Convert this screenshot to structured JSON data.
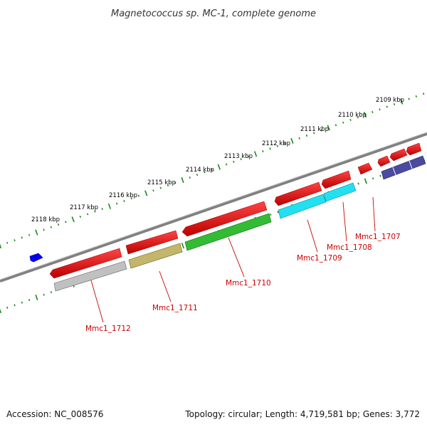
{
  "title": "Magnetococcus sp. MC-1, complete genome",
  "footer": {
    "accession": "Accession: NC_008576",
    "summary": "Topology: circular; Length: 4,719,581 bp; Genes: 3,772"
  },
  "kbp_labels": [
    "2118 kbp",
    "2117 kbp",
    "2116 kbp",
    "2115 kbp",
    "2114 kbp",
    "2113 kbp",
    "2112 kbp",
    "2111 kbp",
    "2110 kbp",
    "2109 kbp"
  ],
  "genes": [
    {
      "id": "Mmc1_1712",
      "label": "Mmc1_1712",
      "color": "#c0c0c0"
    },
    {
      "id": "Mmc1_1711",
      "label": "Mmc1_1711",
      "color": "#c4b56c"
    },
    {
      "id": "Mmc1_1710",
      "label": "Mmc1_1710",
      "color": "#33bb33"
    },
    {
      "id": "Mmc1_1709",
      "label": "Mmc1_1709",
      "color": "#22e0f0"
    },
    {
      "id": "Mmc1_1708",
      "label": "Mmc1_1708",
      "color": "#22e0f0"
    },
    {
      "id": "Mmc1_1707",
      "label": "Mmc1_1707",
      "color": "#4a4aa0"
    }
  ],
  "colors": {
    "cds": "#ee0000",
    "backbone": "#808080",
    "ticks": "#1a8a1a",
    "label": "#cc0000",
    "blue_feature": "#0000ee"
  }
}
